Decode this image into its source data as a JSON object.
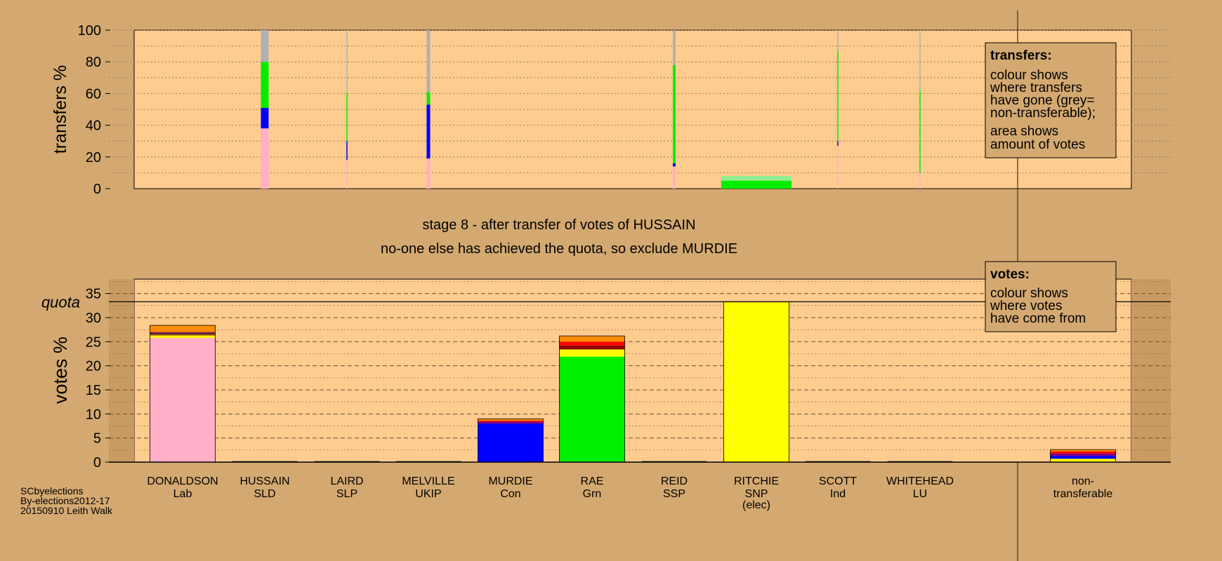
{
  "chart_data": [
    {
      "type": "bar",
      "panel": "transfers",
      "ylabel": "transfers %",
      "ylim": [
        0,
        100
      ],
      "yticks": [
        0,
        20,
        40,
        60,
        80,
        100
      ],
      "legend": {
        "title": "transfers:",
        "lines": [
          "colour shows",
          "where transfers",
          "have gone (grey=",
          "non-transferable);",
          "area shows",
          "amount of votes"
        ]
      },
      "categories": [
        "DONALDSON",
        "HUSSAIN",
        "LAIRD",
        "MELVILLE",
        "MURDIE",
        "RAE",
        "REID",
        "RITCHIE",
        "SCOTT",
        "WHITEHEAD"
      ],
      "bars": [
        {
          "candidate": "HUSSAIN",
          "width_share": 0.11,
          "segments": [
            {
              "colour": "#ffb0c8",
              "value": 38
            },
            {
              "colour": "#0000ff",
              "value": 13
            },
            {
              "colour": "#00ee00",
              "value": 29
            },
            {
              "colour": "#b0b0b0",
              "value": 20
            }
          ]
        },
        {
          "candidate": "LAIRD",
          "width_share": 0.01,
          "segments": [
            {
              "colour": "#ffb0c8",
              "value": 18
            },
            {
              "colour": "#0000ff",
              "value": 12
            },
            {
              "colour": "#00ee00",
              "value": 30
            },
            {
              "colour": "#b0b0b0",
              "value": 40
            }
          ]
        },
        {
          "candidate": "MELVILLE",
          "width_share": 0.05,
          "segments": [
            {
              "colour": "#ffb0c8",
              "value": 19
            },
            {
              "colour": "#0000ff",
              "value": 34
            },
            {
              "colour": "#00ee00",
              "value": 8
            },
            {
              "colour": "#b0b0b0",
              "value": 39
            }
          ]
        },
        {
          "candidate": "REID",
          "width_share": 0.04,
          "segments": [
            {
              "colour": "#ffb0c8",
              "value": 14
            },
            {
              "colour": "#0000ff",
              "value": 2
            },
            {
              "colour": "#00ee00",
              "value": 62
            },
            {
              "colour": "#b0b0b0",
              "value": 22
            }
          ]
        },
        {
          "candidate": "RITCHIE",
          "width_share": 1.0,
          "segments": [
            {
              "colour": "#00ee00",
              "value": 5
            },
            {
              "colour": "#90ee90",
              "value": 3
            }
          ]
        },
        {
          "candidate": "SCOTT",
          "width_share": 0.01,
          "segments": [
            {
              "colour": "#ffb0c8",
              "value": 27
            },
            {
              "colour": "#0000ff",
              "value": 3
            },
            {
              "colour": "#00ee00",
              "value": 57
            },
            {
              "colour": "#b0b0b0",
              "value": 13
            }
          ]
        },
        {
          "candidate": "WHITEHEAD",
          "width_share": 0.01,
          "segments": [
            {
              "colour": "#ffb0c8",
              "value": 10
            },
            {
              "colour": "#00ee00",
              "value": 52
            },
            {
              "colour": "#b0b0b0",
              "value": 38
            }
          ]
        }
      ]
    },
    {
      "type": "bar",
      "panel": "votes",
      "ylabel": "votes %",
      "ylim": [
        0,
        38
      ],
      "yticks": [
        0,
        5,
        10,
        15,
        20,
        25,
        30,
        35
      ],
      "quota": 33.3,
      "quota_label": "quota",
      "title": "stage 8 - after transfer of votes of HUSSAIN",
      "subtitle": "no-one else has achieved the quota, so exclude MURDIE",
      "legend": {
        "title": "votes:",
        "lines": [
          "colour shows",
          "where votes",
          "have come from"
        ]
      },
      "categories": [
        {
          "name": "DONALDSON",
          "party": "Lab",
          "note": ""
        },
        {
          "name": "HUSSAIN",
          "party": "SLD",
          "note": ""
        },
        {
          "name": "LAIRD",
          "party": "SLP",
          "note": ""
        },
        {
          "name": "MELVILLE",
          "party": "UKIP",
          "note": ""
        },
        {
          "name": "MURDIE",
          "party": "Con",
          "note": ""
        },
        {
          "name": "RAE",
          "party": "Grn",
          "note": ""
        },
        {
          "name": "REID",
          "party": "SSP",
          "note": ""
        },
        {
          "name": "RITCHIE",
          "party": "SNP",
          "note": "(elec)"
        },
        {
          "name": "SCOTT",
          "party": "Ind",
          "note": ""
        },
        {
          "name": "WHITEHEAD",
          "party": "LU",
          "note": ""
        },
        {
          "name": "non-",
          "party": "transferable",
          "note": ""
        }
      ],
      "bars": [
        {
          "candidate": "DONALDSON",
          "segments": [
            {
              "colour": "#ffb0c8",
              "value": 25.8
            },
            {
              "colour": "#ffff00",
              "value": 0.5
            },
            {
              "colour": "#8b4513",
              "value": 0.4
            },
            {
              "colour": "#000080",
              "value": 0.2
            },
            {
              "colour": "#ff0000",
              "value": 0.1
            },
            {
              "colour": "#ff8c00",
              "value": 1.4
            }
          ]
        },
        {
          "candidate": "HUSSAIN",
          "segments": []
        },
        {
          "candidate": "LAIRD",
          "segments": []
        },
        {
          "candidate": "MELVILLE",
          "segments": []
        },
        {
          "candidate": "MURDIE",
          "segments": [
            {
              "colour": "#0000ff",
              "value": 8.0
            },
            {
              "colour": "#800080",
              "value": 0.4
            },
            {
              "colour": "#ff0000",
              "value": 0.2
            },
            {
              "colour": "#ff8c00",
              "value": 0.4
            }
          ]
        },
        {
          "candidate": "RAE",
          "segments": [
            {
              "colour": "#00ee00",
              "value": 21.9
            },
            {
              "colour": "#ffff00",
              "value": 1.5
            },
            {
              "colour": "#8b0000",
              "value": 0.8
            },
            {
              "colour": "#ff0000",
              "value": 0.8
            },
            {
              "colour": "#ff8c00",
              "value": 1.2
            }
          ]
        },
        {
          "candidate": "REID",
          "segments": []
        },
        {
          "candidate": "RITCHIE",
          "segments": [
            {
              "colour": "#ffff00",
              "value": 33.3
            }
          ]
        },
        {
          "candidate": "SCOTT",
          "segments": []
        },
        {
          "candidate": "WHITEHEAD",
          "segments": []
        },
        {
          "candidate": "non-transferable",
          "segments": [
            {
              "colour": "#ffff00",
              "value": 0.7
            },
            {
              "colour": "#0000ff",
              "value": 0.6
            },
            {
              "colour": "#800080",
              "value": 0.5
            },
            {
              "colour": "#ff0000",
              "value": 0.4
            },
            {
              "colour": "#ff8c00",
              "value": 0.4
            }
          ]
        }
      ]
    }
  ],
  "footer": {
    "lines": [
      "SCbyelections",
      "By-elections2012-17",
      "20150910 Leith Walk"
    ]
  }
}
